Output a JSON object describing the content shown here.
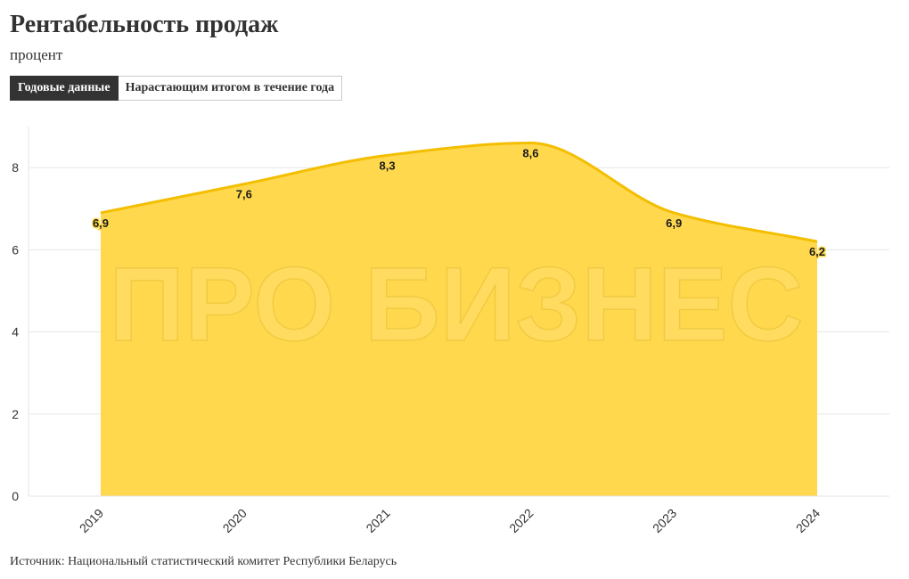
{
  "header": {
    "title": "Рентабельность продаж",
    "subtitle": "процент"
  },
  "tabs": [
    {
      "label": "Годовые данные",
      "active": true
    },
    {
      "label": "Нарастающим итогом в течение года",
      "active": false
    }
  ],
  "watermark": {
    "text": "ПРО БИЗНЕС"
  },
  "colors": {
    "area": "#ffd84d",
    "line": "#f4be00",
    "grid": "#e6e6e6",
    "active_tab": "#333333"
  },
  "chart_data": {
    "type": "area",
    "title": "Рентабельность продаж",
    "ylabel": "",
    "xlabel": "",
    "categories": [
      "2019",
      "2020",
      "2021",
      "2022",
      "2023",
      "2024"
    ],
    "series": [
      {
        "values": [
          6.9,
          7.6,
          8.3,
          8.6,
          6.9,
          6.2
        ],
        "labels": [
          "6,9",
          "7,6",
          "8,3",
          "8,6",
          "6,9",
          "6,2"
        ]
      }
    ],
    "yticks": [
      0,
      2,
      4,
      6,
      8
    ],
    "ylim": [
      0,
      9
    ],
    "grid": true,
    "legend": "none"
  },
  "footer": {
    "source": "Источник: Национальный статистический комитет Республики Беларусь"
  }
}
